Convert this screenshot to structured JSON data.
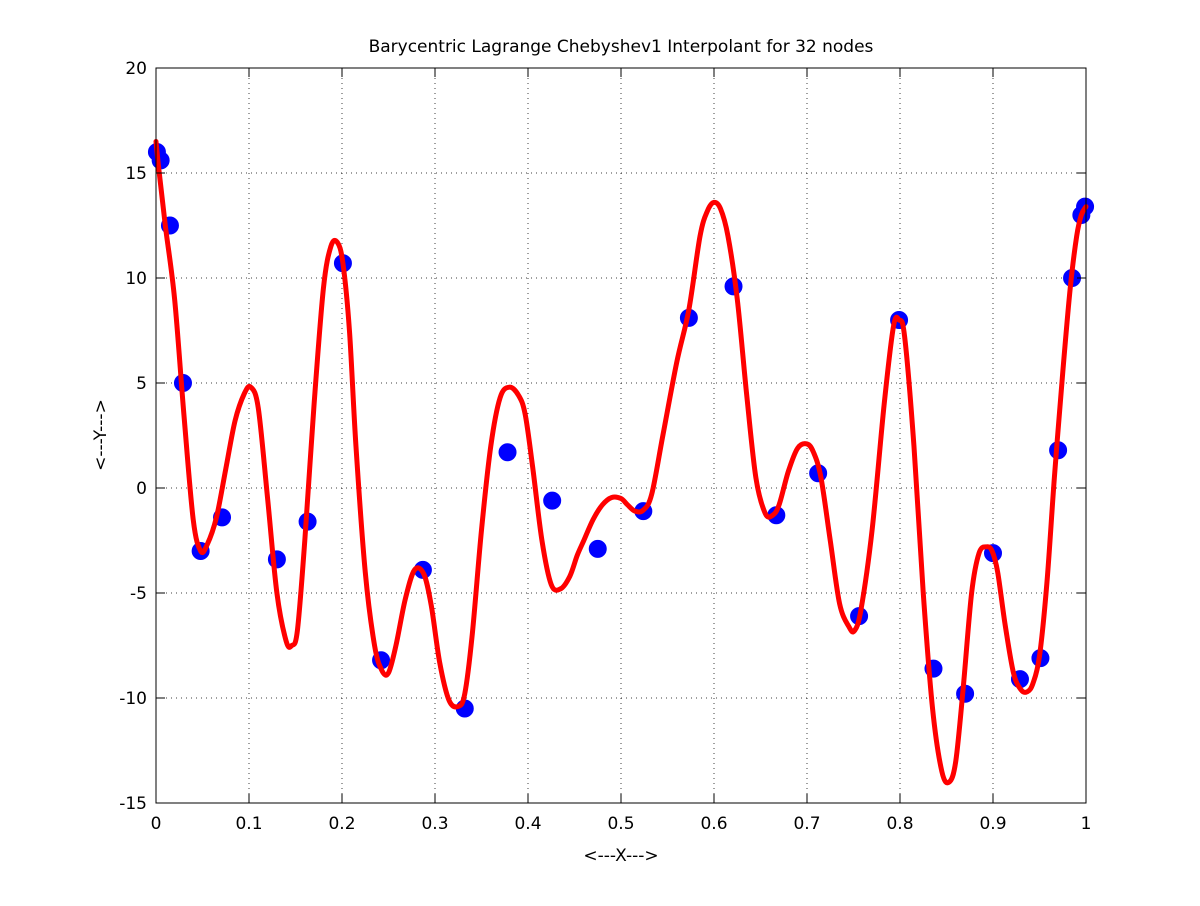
{
  "chart_data": {
    "type": "line",
    "title": "Barycentric Lagrange Chebyshev1 Interpolant for 32 nodes",
    "xlabel": "<---X--->",
    "ylabel": "<---Y--->",
    "xlim": [
      0,
      1
    ],
    "ylim": [
      -15,
      20
    ],
    "xticks": [
      0,
      0.1,
      0.2,
      0.3,
      0.4,
      0.5,
      0.6,
      0.7,
      0.8,
      0.9,
      1
    ],
    "xtick_labels": [
      "0",
      "0.1",
      "0.2",
      "0.3",
      "0.4",
      "0.5",
      "0.6",
      "0.7",
      "0.8",
      "0.9",
      "1"
    ],
    "yticks": [
      -15,
      -10,
      -5,
      0,
      5,
      10,
      15,
      20
    ],
    "ytick_labels": [
      "-15",
      "-10",
      "-5",
      "0",
      "5",
      "10",
      "15",
      "20"
    ],
    "grid": true,
    "series": [
      {
        "kind": "markers",
        "color": "#0000ff",
        "x": [
          0.001,
          0.005,
          0.015,
          0.029,
          0.048,
          0.071,
          0.13,
          0.163,
          0.201,
          0.242,
          0.287,
          0.332,
          0.378,
          0.426,
          0.475,
          0.524,
          0.573,
          0.621,
          0.667,
          0.712,
          0.756,
          0.799,
          0.836,
          0.87,
          0.9,
          0.929,
          0.951,
          0.97,
          0.985,
          0.995,
          0.999
        ],
        "y": [
          16.0,
          15.6,
          12.5,
          5.0,
          -3.0,
          -1.4,
          -3.4,
          -1.6,
          10.7,
          -8.2,
          -3.9,
          -10.5,
          1.7,
          -0.6,
          -2.9,
          -1.1,
          8.1,
          9.6,
          -1.3,
          0.7,
          -6.1,
          8.0,
          -8.6,
          -9.8,
          -3.1,
          -9.1,
          -8.1,
          1.8,
          10.0,
          13.0,
          13.4
        ]
      },
      {
        "kind": "line",
        "color": "#ff0000",
        "x": [
          0.0,
          0.003,
          0.01,
          0.02,
          0.03,
          0.04,
          0.048,
          0.055,
          0.065,
          0.075,
          0.085,
          0.095,
          0.102,
          0.11,
          0.12,
          0.13,
          0.14,
          0.146,
          0.152,
          0.16,
          0.17,
          0.18,
          0.188,
          0.195,
          0.201,
          0.208,
          0.215,
          0.225,
          0.235,
          0.243,
          0.25,
          0.258,
          0.268,
          0.278,
          0.288,
          0.296,
          0.305,
          0.315,
          0.325,
          0.332,
          0.34,
          0.35,
          0.36,
          0.37,
          0.38,
          0.39,
          0.397,
          0.405,
          0.415,
          0.425,
          0.435,
          0.445,
          0.453,
          0.46,
          0.47,
          0.48,
          0.49,
          0.5,
          0.507,
          0.515,
          0.524,
          0.533,
          0.545,
          0.56,
          0.573,
          0.585,
          0.593,
          0.6,
          0.607,
          0.615,
          0.625,
          0.635,
          0.645,
          0.655,
          0.663,
          0.67,
          0.68,
          0.69,
          0.7,
          0.707,
          0.715,
          0.725,
          0.735,
          0.745,
          0.751,
          0.758,
          0.77,
          0.783,
          0.793,
          0.799,
          0.805,
          0.815,
          0.825,
          0.835,
          0.845,
          0.853,
          0.86,
          0.868,
          0.877,
          0.885,
          0.893,
          0.899,
          0.905,
          0.913,
          0.922,
          0.93,
          0.937,
          0.943,
          0.95,
          0.958,
          0.966,
          0.975,
          0.983,
          0.99,
          0.995,
          1.0
        ],
        "y": [
          16.5,
          15.2,
          12.5,
          9.0,
          3.5,
          -1.5,
          -3.0,
          -2.7,
          -1.4,
          0.9,
          3.2,
          4.5,
          4.8,
          3.8,
          -0.5,
          -5.0,
          -7.3,
          -7.5,
          -6.8,
          -2.5,
          4.0,
          9.5,
          11.5,
          11.7,
          10.7,
          7.5,
          2.0,
          -4.0,
          -7.5,
          -8.7,
          -8.8,
          -7.5,
          -5.3,
          -3.9,
          -4.1,
          -5.6,
          -8.3,
          -10.1,
          -10.4,
          -9.8,
          -7.0,
          -2.0,
          2.0,
          4.3,
          4.8,
          4.4,
          3.5,
          1.0,
          -2.5,
          -4.6,
          -4.8,
          -4.2,
          -3.2,
          -2.5,
          -1.5,
          -0.8,
          -0.45,
          -0.5,
          -0.8,
          -1.1,
          -1.05,
          -0.3,
          2.5,
          6.0,
          8.5,
          12.0,
          13.2,
          13.6,
          13.3,
          12.0,
          9.0,
          4.5,
          0.5,
          -1.2,
          -1.3,
          -0.8,
          0.8,
          1.9,
          2.1,
          1.7,
          0.5,
          -2.5,
          -5.5,
          -6.6,
          -6.8,
          -5.8,
          -2.0,
          4.0,
          7.7,
          8.0,
          7.2,
          2.0,
          -5.0,
          -10.5,
          -13.5,
          -14.0,
          -13.0,
          -9.5,
          -5.0,
          -3.1,
          -2.8,
          -3.0,
          -4.0,
          -6.5,
          -8.8,
          -9.6,
          -9.7,
          -9.3,
          -8.0,
          -4.5,
          0.5,
          5.5,
          9.5,
          12.0,
          13.0,
          13.4
        ]
      }
    ]
  }
}
